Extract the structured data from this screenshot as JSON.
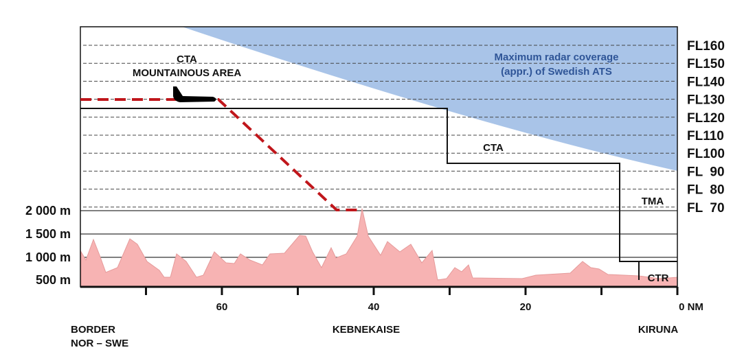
{
  "title_labels": {
    "cta_mountain_line1": "CTA",
    "cta_mountain_line2": "MOUNTAINOUS AREA",
    "cta": "CTA",
    "tma": "TMA",
    "ctr": "CTR",
    "radar_line1": "Maximum radar coverage",
    "radar_line2": "(appr.) of Swedish ATS"
  },
  "flight_levels": [
    "FL160",
    "FL150",
    "FL140",
    "FL130",
    "FL120",
    "FL110",
    "FL100",
    "FL  90",
    "FL  80",
    "FL  70"
  ],
  "altitudes": [
    "2 000 m",
    "1 500 m",
    "1 000 m",
    "500 m"
  ],
  "x_axis": {
    "tick_labels": [
      "60",
      "40",
      "20",
      "0 NM"
    ],
    "tick_label_values_nm": [
      60,
      40,
      20,
      0
    ],
    "tick_interval_nm": 10,
    "range_nm": [
      78.6,
      0
    ]
  },
  "places": {
    "border_line1": "BORDER",
    "border_line2": "NOR – SWE",
    "kebnekaise": "KEBNEKAISE",
    "kiruna": "KIRUNA"
  },
  "colors": {
    "radar": "#a9c4e8",
    "terrain": "#f7b3b3",
    "route": "#c0161b"
  }
}
